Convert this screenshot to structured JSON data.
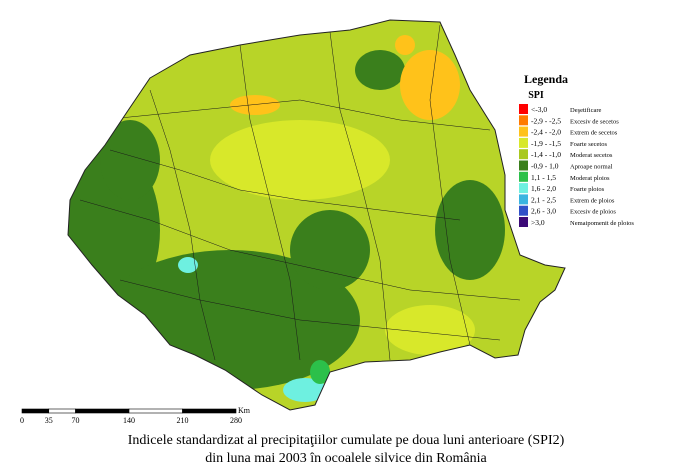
{
  "legend": {
    "title": "Legenda",
    "subtitle": "SPI",
    "items": [
      {
        "range": "<-3,0",
        "label": "Deşetificare",
        "color": "#ff0000"
      },
      {
        "range": "-2,9 - -2,5",
        "label": "Excesiv de secetos",
        "color": "#ff7a00"
      },
      {
        "range": "-2,4 - -2,0",
        "label": "Extrem de secetos",
        "color": "#ffc21a"
      },
      {
        "range": "-1,9 - -1,5",
        "label": "Foarte secetos",
        "color": "#d8e82a"
      },
      {
        "range": "-1,4 - -1,0",
        "label": "Moderat secetos",
        "color": "#a8c81e"
      },
      {
        "range": "-0,9 - 1,0",
        "label": "Aproape normal",
        "color": "#3a7f1c"
      },
      {
        "range": "1,1 - 1,5",
        "label": "Moderat ploios",
        "color": "#2cc04a"
      },
      {
        "range": "1,6 - 2,0",
        "label": "Foarte ploios",
        "color": "#6ef0e0"
      },
      {
        "range": "2,1 - 2,5",
        "label": "Extrem de ploios",
        "color": "#3ab4e0"
      },
      {
        "range": "2,6 - 3,0",
        "label": "Excesiv de ploios",
        "color": "#3050c8"
      },
      {
        "range": ">3,0",
        "label": "Nemaipomenit de ploios",
        "color": "#3c0a78"
      }
    ]
  },
  "scale": {
    "ticks": [
      0,
      35,
      70,
      140,
      210,
      280
    ],
    "unit": "Km"
  },
  "caption": {
    "line1": "Indicele standardizat al precipitaţiilor cumulate pe doua luni anterioare (SPI2)",
    "line2": "din luna mai 2003 în ocoalele silvice din România"
  }
}
